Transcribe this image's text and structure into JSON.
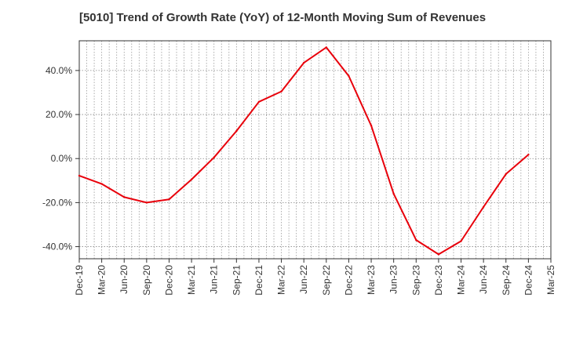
{
  "chart_data": {
    "type": "line",
    "title": "[5010]  Trend of Growth Rate (YoY) of 12-Month Moving Sum of Revenues",
    "xlabel": "",
    "ylabel": "",
    "x_tick_labels": [
      "Dec-19",
      "Mar-20",
      "Jun-20",
      "Sep-20",
      "Dec-20",
      "Mar-21",
      "Jun-21",
      "Sep-21",
      "Dec-21",
      "Mar-22",
      "Jun-22",
      "Sep-22",
      "Dec-22",
      "Mar-23",
      "Jun-23",
      "Sep-23",
      "Dec-23",
      "Mar-24",
      "Jun-24",
      "Sep-24",
      "Dec-24",
      "Mar-25"
    ],
    "y_tick_labels": [
      "40.0%",
      "20.0%",
      "0.0%",
      "-20.0%",
      "-40.0%"
    ],
    "y_tick_values": [
      40,
      20,
      0,
      -20,
      -40
    ],
    "ylim": [
      -45.5,
      53.5
    ],
    "grid": true,
    "series": [
      {
        "color": "#e8000b",
        "x": [
          "Dec-19",
          "Mar-20",
          "Jun-20",
          "Sep-20",
          "Dec-20",
          "Mar-21",
          "Jun-21",
          "Sep-21",
          "Dec-21",
          "Mar-22",
          "Jun-22",
          "Sep-22",
          "Dec-22",
          "Mar-23",
          "Jun-23",
          "Sep-23",
          "Dec-23",
          "Mar-24",
          "Jun-24",
          "Sep-24",
          "Dec-24"
        ],
        "values": [
          -7.8,
          -11.5,
          -17.5,
          -20.0,
          -18.5,
          -9.5,
          0.5,
          12.5,
          25.8,
          30.5,
          43.5,
          50.5,
          37.5,
          15.0,
          -16.0,
          -37.0,
          -43.5,
          -37.5,
          -22.0,
          -7.0,
          1.8
        ]
      }
    ]
  }
}
